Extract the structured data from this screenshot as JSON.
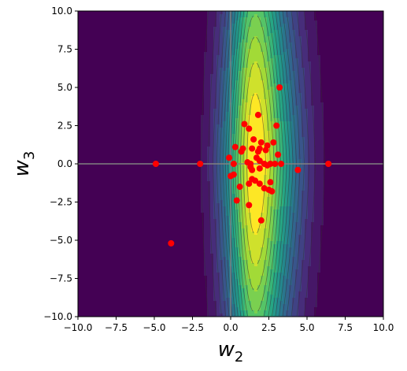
{
  "chart_data": {
    "type": "contour",
    "title": "",
    "xlabel_main": "w",
    "xlabel_sub": "2",
    "ylabel_main": "w",
    "ylabel_sub": "3",
    "xlim": [
      -10,
      10
    ],
    "ylim": [
      -10,
      10
    ],
    "xticks": [
      -10,
      -7.5,
      -5,
      -2.5,
      0,
      2.5,
      5,
      7.5,
      10
    ],
    "yticks": [
      -10,
      -7.5,
      -5,
      -2.5,
      0,
      2.5,
      5,
      7.5,
      10
    ],
    "xtick_labels": [
      "−10.0",
      "−7.5",
      "−5.0",
      "−2.5",
      "0.0",
      "2.5",
      "5.0",
      "7.5",
      "10.0"
    ],
    "ytick_labels": [
      "−10.0",
      "−7.5",
      "−5.0",
      "−2.5",
      "0.0",
      "2.5",
      "5.0",
      "7.5",
      "10.0"
    ],
    "grid": false,
    "colormap": "viridis",
    "surface_center": [
      1.6,
      0.0
    ],
    "contour_reference_lines": {
      "x": 0,
      "y": 0,
      "color": "#808080"
    },
    "marker_color": "#ff0000",
    "points": [
      {
        "x": 3.2,
        "y": 5.0
      },
      {
        "x": 1.8,
        "y": 3.2
      },
      {
        "x": 0.9,
        "y": 2.6
      },
      {
        "x": 1.2,
        "y": 2.3
      },
      {
        "x": 3.0,
        "y": 2.5
      },
      {
        "x": 1.5,
        "y": 1.6
      },
      {
        "x": 2.0,
        "y": 1.4
      },
      {
        "x": 2.8,
        "y": 1.4
      },
      {
        "x": 0.3,
        "y": 1.1
      },
      {
        "x": 0.8,
        "y": 1.0
      },
      {
        "x": 1.4,
        "y": 1.0
      },
      {
        "x": 1.9,
        "y": 1.0
      },
      {
        "x": 2.4,
        "y": 1.2
      },
      {
        "x": 0.7,
        "y": 0.8
      },
      {
        "x": 1.8,
        "y": 0.8
      },
      {
        "x": 2.3,
        "y": 0.9
      },
      {
        "x": 3.1,
        "y": 0.6
      },
      {
        "x": -0.1,
        "y": 0.4
      },
      {
        "x": 1.7,
        "y": 0.4
      },
      {
        "x": 1.9,
        "y": 0.2
      },
      {
        "x": 2.2,
        "y": 0.0
      },
      {
        "x": 2.6,
        "y": 0.0
      },
      {
        "x": 1.1,
        "y": 0.1
      },
      {
        "x": 1.3,
        "y": 0.0
      },
      {
        "x": 0.2,
        "y": 0.0
      },
      {
        "x": 2.9,
        "y": 0.0
      },
      {
        "x": 3.3,
        "y": 0.0
      },
      {
        "x": 2.4,
        "y": -0.1
      },
      {
        "x": 1.3,
        "y": -0.2
      },
      {
        "x": 1.9,
        "y": -0.3
      },
      {
        "x": 1.4,
        "y": -0.4
      },
      {
        "x": 4.4,
        "y": -0.4
      },
      {
        "x": 0.0,
        "y": -0.8
      },
      {
        "x": 0.2,
        "y": -0.7
      },
      {
        "x": 1.4,
        "y": -1.0
      },
      {
        "x": 1.6,
        "y": -1.1
      },
      {
        "x": 2.6,
        "y": -1.2
      },
      {
        "x": 0.6,
        "y": -1.5
      },
      {
        "x": 1.2,
        "y": -1.3
      },
      {
        "x": 1.9,
        "y": -1.3
      },
      {
        "x": 2.2,
        "y": -1.6
      },
      {
        "x": 2.5,
        "y": -1.7
      },
      {
        "x": 2.7,
        "y": -1.8
      },
      {
        "x": 0.4,
        "y": -2.4
      },
      {
        "x": 1.2,
        "y": -2.7
      },
      {
        "x": 2.0,
        "y": -3.7
      },
      {
        "x": -4.9,
        "y": 0.0
      },
      {
        "x": -2.0,
        "y": 0.0
      },
      {
        "x": 6.4,
        "y": 0.0
      },
      {
        "x": -3.9,
        "y": -5.2
      }
    ]
  }
}
